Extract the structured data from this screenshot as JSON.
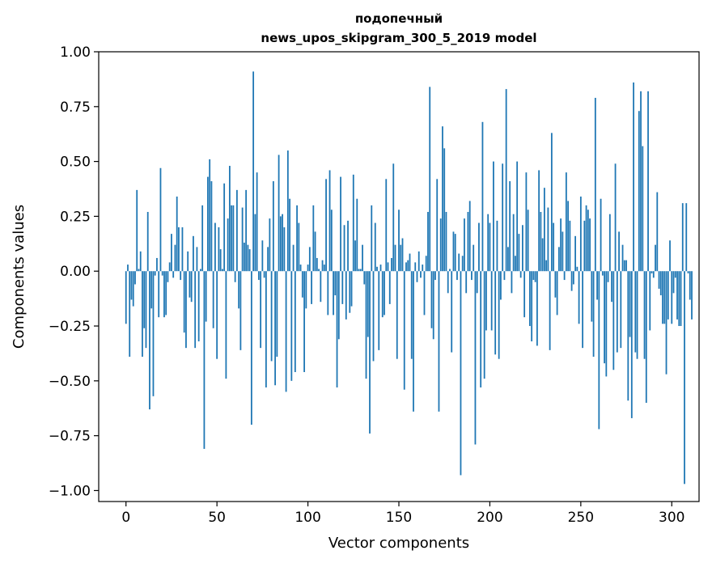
{
  "chart_data": {
    "type": "bar",
    "title_line1": "подопечный",
    "title_line2": "news_upos_skipgram_300_5_2019 model",
    "xlabel": "Vector components",
    "ylabel": "Components values",
    "xlim": [
      -15,
      315
    ],
    "ylim": [
      -1.05,
      1.0
    ],
    "xticks": [
      0,
      50,
      100,
      150,
      200,
      250,
      300
    ],
    "yticks": [
      1.0,
      0.75,
      0.5,
      0.25,
      0.0,
      -0.25,
      -0.5,
      -0.75,
      -1.0
    ],
    "ytick_labels": [
      "1.00",
      "0.75",
      "0.50",
      "0.25",
      "0.00",
      "−0.25",
      "−0.50",
      "−0.75",
      "−1.00"
    ],
    "bar_color": "#1f77b4",
    "values": [
      -0.24,
      0.03,
      -0.39,
      -0.13,
      -0.16,
      -0.06,
      0.37,
      0.01,
      0.09,
      -0.39,
      -0.26,
      -0.35,
      0.27,
      -0.63,
      -0.17,
      -0.57,
      -0.02,
      0.06,
      -0.21,
      0.47,
      -0.02,
      -0.21,
      -0.2,
      -0.05,
      0.04,
      0.17,
      -0.03,
      0.12,
      0.34,
      0.2,
      -0.04,
      0.2,
      -0.28,
      -0.35,
      0.09,
      -0.12,
      -0.14,
      0.16,
      -0.35,
      0.11,
      -0.32,
      0.01,
      0.3,
      -0.81,
      -0.23,
      0.43,
      0.51,
      0.41,
      -0.26,
      0.22,
      -0.4,
      0.2,
      0.1,
      0.01,
      0.4,
      -0.49,
      0.24,
      0.48,
      0.3,
      0.3,
      -0.05,
      0.37,
      -0.17,
      -0.36,
      0.29,
      0.13,
      0.37,
      0.12,
      0.1,
      -0.7,
      0.91,
      0.26,
      0.45,
      -0.04,
      -0.35,
      0.14,
      -0.03,
      -0.53,
      0.11,
      0.24,
      -0.41,
      0.41,
      -0.52,
      -0.39,
      0.53,
      0.25,
      0.26,
      0.2,
      -0.55,
      0.55,
      0.33,
      -0.5,
      0.12,
      -0.46,
      0.3,
      0.22,
      0.03,
      -0.12,
      -0.46,
      -0.17,
      0.03,
      0.11,
      -0.15,
      0.3,
      0.18,
      0.06,
      0.01,
      -0.14,
      0.05,
      0.03,
      0.42,
      -0.2,
      0.46,
      0.28,
      -0.2,
      -0.11,
      -0.53,
      -0.31,
      0.43,
      -0.15,
      0.21,
      -0.22,
      0.23,
      -0.19,
      -0.16,
      0.44,
      0.14,
      0.33,
      0.01,
      0.01,
      0.12,
      -0.06,
      -0.49,
      -0.3,
      -0.74,
      0.3,
      -0.41,
      0.22,
      0.02,
      -0.36,
      0.03,
      -0.21,
      -0.2,
      0.42,
      0.04,
      -0.15,
      0.06,
      0.49,
      0.12,
      -0.4,
      0.28,
      0.12,
      0.15,
      -0.54,
      0.04,
      0.05,
      0.08,
      -0.4,
      -0.64,
      0.04,
      -0.05,
      0.09,
      -0.03,
      0.03,
      -0.2,
      0.07,
      0.27,
      0.84,
      -0.26,
      -0.31,
      -0.04,
      0.42,
      -0.64,
      0.24,
      0.66,
      0.56,
      0.27,
      -0.1,
      0.01,
      -0.37,
      0.18,
      0.17,
      -0.04,
      0.08,
      -0.93,
      0.07,
      0.24,
      -0.1,
      0.27,
      0.32,
      -0.04,
      0.12,
      -0.79,
      -0.1,
      0.22,
      -0.53,
      0.68,
      -0.49,
      -0.27,
      0.26,
      0.22,
      -0.27,
      0.5,
      -0.38,
      0.23,
      -0.4,
      -0.13,
      0.49,
      -0.04,
      0.83,
      0.11,
      0.41,
      -0.1,
      0.26,
      0.07,
      0.5,
      0.17,
      -0.03,
      0.21,
      -0.21,
      0.45,
      0.28,
      -0.25,
      -0.32,
      -0.04,
      -0.05,
      -0.34,
      0.46,
      0.27,
      0.15,
      0.38,
      0.05,
      0.29,
      -0.36,
      0.63,
      0.22,
      -0.12,
      -0.2,
      0.11,
      0.24,
      0.18,
      -0.04,
      0.45,
      0.32,
      0.23,
      -0.09,
      -0.06,
      0.16,
      0.02,
      -0.24,
      0.34,
      -0.35,
      0.23,
      0.3,
      0.28,
      0.24,
      -0.23,
      -0.39,
      0.79,
      -0.13,
      -0.72,
      0.33,
      -0.02,
      -0.42,
      -0.48,
      -0.05,
      0.26,
      -0.14,
      -0.45,
      0.49,
      -0.37,
      0.18,
      -0.35,
      0.12,
      0.05,
      0.05,
      -0.59,
      -0.3,
      -0.67,
      0.86,
      -0.37,
      -0.4,
      0.73,
      0.82,
      0.57,
      -0.4,
      -0.6,
      0.82,
      -0.27,
      -0.01,
      -0.03,
      0.12,
      0.36,
      -0.08,
      -0.11,
      -0.24,
      -0.24,
      -0.47,
      -0.22,
      0.14
    ],
    "extra_values": [
      -0.24,
      -0.1,
      -0.03,
      -0.22,
      -0.25,
      -0.25,
      0.31,
      -0.97,
      0.31,
      -0.01,
      -0.13,
      -0.22
    ]
  }
}
